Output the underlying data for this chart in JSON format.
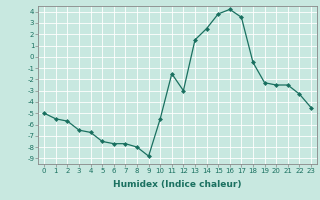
{
  "x": [
    0,
    1,
    2,
    3,
    4,
    5,
    6,
    7,
    8,
    9,
    10,
    11,
    12,
    13,
    14,
    15,
    16,
    17,
    18,
    19,
    20,
    21,
    22,
    23
  ],
  "y": [
    -5.0,
    -5.5,
    -5.7,
    -6.5,
    -6.7,
    -7.5,
    -7.7,
    -7.7,
    -8.0,
    -8.8,
    -5.5,
    -1.5,
    -3.0,
    1.5,
    2.5,
    3.8,
    4.2,
    3.5,
    -0.5,
    -2.3,
    -2.5,
    -2.5,
    -3.3,
    -4.5
  ],
  "line_color": "#1a7060",
  "marker": "D",
  "marker_size": 2.0,
  "bg_color": "#c8e8e0",
  "grid_color": "#ffffff",
  "xlabel": "Humidex (Indice chaleur)",
  "ylim": [
    -9.5,
    4.5
  ],
  "xlim": [
    -0.5,
    23.5
  ],
  "yticks": [
    -9,
    -8,
    -7,
    -6,
    -5,
    -4,
    -3,
    -2,
    -1,
    0,
    1,
    2,
    3,
    4
  ],
  "xticks": [
    0,
    1,
    2,
    3,
    4,
    5,
    6,
    7,
    8,
    9,
    10,
    11,
    12,
    13,
    14,
    15,
    16,
    17,
    18,
    19,
    20,
    21,
    22,
    23
  ],
  "tick_fontsize": 5.0,
  "label_fontsize": 6.5,
  "tick_color": "#1a7060",
  "spine_color": "#888888",
  "linewidth": 0.9
}
